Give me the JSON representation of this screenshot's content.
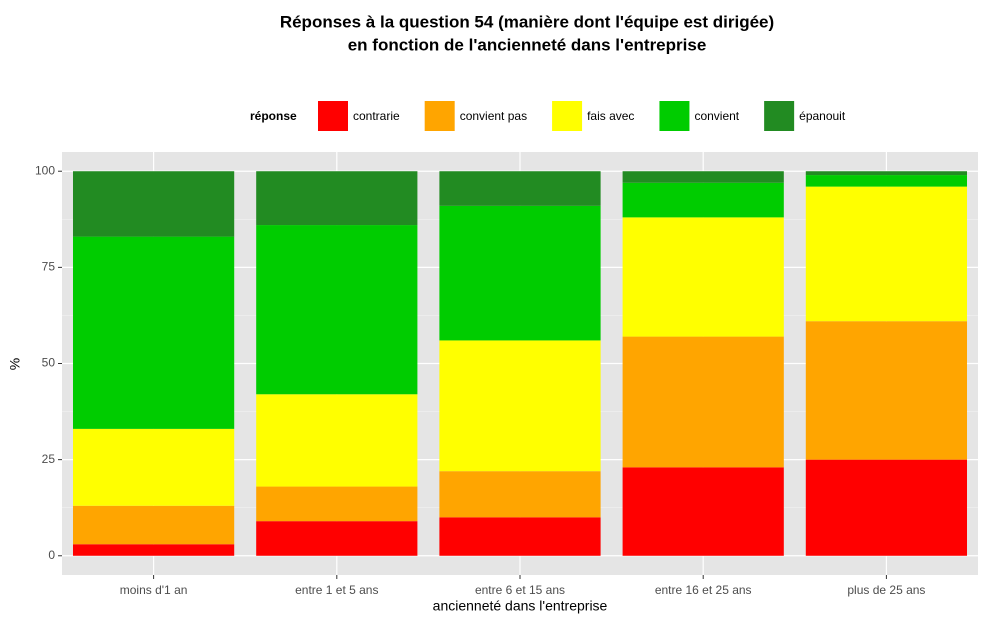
{
  "chart_data": {
    "type": "stacked_bar",
    "title": "Réponses à la question 54 (manière dont l'équipe est dirigée)",
    "subtitle": "en fonction de l'ancienneté dans l'entreprise",
    "x_label": "ancienneté dans l'entreprise",
    "y_label": "%",
    "legend_title": "réponse",
    "legend_position": "top",
    "categories": [
      "moins d'1 an",
      "entre 1 et 5 ans",
      "entre 6 et 15 ans",
      "entre 16 et 25 ans",
      "plus de 25 ans"
    ],
    "series": [
      {
        "name": "contrarie",
        "color": "#ff0000",
        "values": [
          3,
          9,
          10,
          23,
          25
        ]
      },
      {
        "name": "convient pas",
        "color": "#ffa500",
        "values": [
          10,
          9,
          12,
          34,
          36
        ]
      },
      {
        "name": "fais avec",
        "color": "#ffff00",
        "values": [
          20,
          24,
          34,
          31,
          35
        ]
      },
      {
        "name": "convient",
        "color": "#00cc00",
        "values": [
          50,
          44,
          35,
          9,
          3
        ]
      },
      {
        "name": "épanouit",
        "color": "#228b22",
        "values": [
          17,
          14,
          9,
          3,
          1
        ]
      }
    ],
    "ylim": [
      -5,
      105
    ],
    "yticks": [
      0,
      25,
      50,
      75,
      100
    ],
    "grid": true
  }
}
